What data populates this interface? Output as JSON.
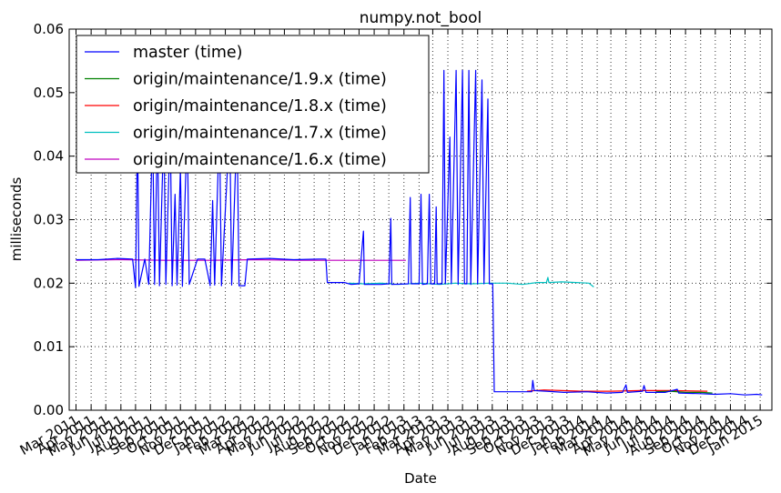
{
  "chart_data": {
    "type": "line",
    "title": "numpy.not_bool",
    "xlabel": "Date",
    "ylabel": "milliseconds",
    "ylim": [
      0,
      0.06
    ],
    "xlim": [
      "2011-02-15",
      "2015-01-25"
    ],
    "grid": true,
    "legend_position": "top-left",
    "yticks": [
      "0.00",
      "0.01",
      "0.02",
      "0.03",
      "0.04",
      "0.05",
      "0.06"
    ],
    "xticks": [
      "Mar 2011",
      "Apr 2011",
      "May 2011",
      "Jun 2011",
      "Jul 2011",
      "Aug 2011",
      "Sep 2011",
      "Oct 2011",
      "Nov 2011",
      "Dec 2011",
      "Jan 2012",
      "Feb 2012",
      "Mar 2012",
      "Apr 2012",
      "May 2012",
      "Jun 2012",
      "Jul 2012",
      "Aug 2012",
      "Sep 2012",
      "Oct 2012",
      "Nov 2012",
      "Dec 2012",
      "Jan 2013",
      "Feb 2013",
      "Mar 2013",
      "Apr 2013",
      "May 2013",
      "Jun 2013",
      "Jul 2013",
      "Aug 2013",
      "Sep 2013",
      "Oct 2013",
      "Nov 2013",
      "Dec 2013",
      "Jan 2014",
      "Feb 2014",
      "Mar 2014",
      "Apr 2014",
      "May 2014",
      "Jun 2014",
      "Jul 2014",
      "Aug 2014",
      "Sep 2014",
      "Oct 2014",
      "Nov 2014",
      "Dec 2014",
      "Jan 2015"
    ],
    "series": [
      {
        "name": "master (time)",
        "color": "#0000ff",
        "points": [
          [
            "2011-03-01",
            0.0237
          ],
          [
            "2011-04-15",
            0.0237
          ],
          [
            "2011-05-25",
            0.0239
          ],
          [
            "2011-06-25",
            0.0238
          ],
          [
            "2011-07-01",
            0.0193
          ],
          [
            "2011-07-05",
            0.045
          ],
          [
            "2011-07-08",
            0.0195
          ],
          [
            "2011-07-20",
            0.0238
          ],
          [
            "2011-07-28",
            0.0198
          ],
          [
            "2011-08-05",
            0.045
          ],
          [
            "2011-08-09",
            0.0198
          ],
          [
            "2011-08-15",
            0.045
          ],
          [
            "2011-08-19",
            0.0196
          ],
          [
            "2011-08-28",
            0.045
          ],
          [
            "2011-09-01",
            0.0198
          ],
          [
            "2011-09-10",
            0.045
          ],
          [
            "2011-09-14",
            0.0196
          ],
          [
            "2011-09-20",
            0.034
          ],
          [
            "2011-09-24",
            0.0197
          ],
          [
            "2011-10-01",
            0.038
          ],
          [
            "2011-10-05",
            0.0195
          ],
          [
            "2011-10-15",
            0.045
          ],
          [
            "2011-10-19",
            0.0198
          ],
          [
            "2011-11-05",
            0.0238
          ],
          [
            "2011-11-20",
            0.0238
          ],
          [
            "2011-12-01",
            0.0196
          ],
          [
            "2011-12-06",
            0.033
          ],
          [
            "2011-12-10",
            0.0197
          ],
          [
            "2011-12-20",
            0.045
          ],
          [
            "2011-12-24",
            0.0196
          ],
          [
            "2012-01-10",
            0.045
          ],
          [
            "2012-01-14",
            0.0197
          ],
          [
            "2012-01-25",
            0.045
          ],
          [
            "2012-01-29",
            0.0196
          ],
          [
            "2012-02-10",
            0.0196
          ],
          [
            "2012-02-15",
            0.0238
          ],
          [
            "2012-04-01",
            0.0239
          ],
          [
            "2012-05-20",
            0.0237
          ],
          [
            "2012-07-10",
            0.0238
          ],
          [
            "2012-07-25",
            0.0238
          ],
          [
            "2012-07-28",
            0.0201
          ],
          [
            "2012-09-01",
            0.0201
          ],
          [
            "2012-09-15",
            0.0198
          ],
          [
            "2012-10-01",
            0.0199
          ],
          [
            "2012-10-10",
            0.0282
          ],
          [
            "2012-10-12",
            0.0198
          ],
          [
            "2012-11-15",
            0.0198
          ],
          [
            "2012-12-01",
            0.0199
          ],
          [
            "2012-12-05",
            0.0302
          ],
          [
            "2012-12-07",
            0.0198
          ],
          [
            "2013-01-10",
            0.0199
          ],
          [
            "2013-01-14",
            0.0335
          ],
          [
            "2013-01-16",
            0.0199
          ],
          [
            "2013-02-01",
            0.0199
          ],
          [
            "2013-02-05",
            0.034
          ],
          [
            "2013-02-08",
            0.0198
          ],
          [
            "2013-02-18",
            0.0199
          ],
          [
            "2013-02-22",
            0.034
          ],
          [
            "2013-02-25",
            0.0199
          ],
          [
            "2013-03-05",
            0.0199
          ],
          [
            "2013-03-08",
            0.032
          ],
          [
            "2013-03-10",
            0.0199
          ],
          [
            "2013-03-20",
            0.0199
          ],
          [
            "2013-03-24",
            0.0535
          ],
          [
            "2013-03-27",
            0.0199
          ],
          [
            "2013-04-05",
            0.043
          ],
          [
            "2013-04-08",
            0.0199
          ],
          [
            "2013-04-18",
            0.0535
          ],
          [
            "2013-04-22",
            0.0198
          ],
          [
            "2013-05-01",
            0.0535
          ],
          [
            "2013-05-05",
            0.0199
          ],
          [
            "2013-05-10",
            0.0199
          ],
          [
            "2013-05-14",
            0.0535
          ],
          [
            "2013-05-18",
            0.0198
          ],
          [
            "2013-05-28",
            0.0535
          ],
          [
            "2013-06-01",
            0.0199
          ],
          [
            "2013-06-10",
            0.052
          ],
          [
            "2013-06-14",
            0.0199
          ],
          [
            "2013-06-22",
            0.049
          ],
          [
            "2013-06-25",
            0.0199
          ],
          [
            "2013-07-02",
            0.0199
          ],
          [
            "2013-07-05",
            0.0029
          ],
          [
            "2013-08-15",
            0.0029
          ],
          [
            "2013-09-20",
            0.0029
          ],
          [
            "2013-09-22",
            0.0047
          ],
          [
            "2013-09-25",
            0.0031
          ],
          [
            "2013-10-20",
            0.003
          ],
          [
            "2013-11-25",
            0.0028
          ],
          [
            "2014-01-10",
            0.0029
          ],
          [
            "2014-02-20",
            0.0027
          ],
          [
            "2014-03-25",
            0.0028
          ],
          [
            "2014-04-01",
            0.004
          ],
          [
            "2014-04-04",
            0.0028
          ],
          [
            "2014-05-05",
            0.003
          ],
          [
            "2014-05-08",
            0.0039
          ],
          [
            "2014-05-12",
            0.0028
          ],
          [
            "2014-06-20",
            0.0028
          ],
          [
            "2014-07-15",
            0.0033
          ],
          [
            "2014-07-18",
            0.0027
          ],
          [
            "2014-09-01",
            0.0026
          ],
          [
            "2014-10-01",
            0.0025
          ],
          [
            "2014-11-01",
            0.0026
          ],
          [
            "2014-12-01",
            0.0024
          ],
          [
            "2014-12-25",
            0.0025
          ],
          [
            "2015-01-05",
            0.0024
          ]
        ]
      },
      {
        "name": "origin/maintenance/1.9.x (time)",
        "color": "#008000",
        "points": [
          [
            "2014-06-01",
            0.0029
          ],
          [
            "2014-07-01",
            0.003
          ],
          [
            "2014-08-01",
            0.0028
          ],
          [
            "2014-09-01",
            0.0028
          ],
          [
            "2014-09-25",
            0.0027
          ]
        ]
      },
      {
        "name": "origin/maintenance/1.8.x (time)",
        "color": "#ff0000",
        "points": [
          [
            "2013-09-10",
            0.003
          ],
          [
            "2013-10-15",
            0.0032
          ],
          [
            "2013-11-20",
            0.0031
          ],
          [
            "2014-01-01",
            0.003
          ],
          [
            "2014-03-01",
            0.003
          ],
          [
            "2014-05-01",
            0.0031
          ],
          [
            "2014-07-01",
            0.0031
          ],
          [
            "2014-09-15",
            0.003
          ]
        ]
      },
      {
        "name": "origin/maintenance/1.7.x (time)",
        "color": "#00bfbf",
        "points": [
          [
            "2012-09-10",
            0.02
          ],
          [
            "2012-10-10",
            0.0199
          ],
          [
            "2012-11-15",
            0.02
          ],
          [
            "2012-12-20",
            0.0198
          ],
          [
            "2013-02-01",
            0.02
          ],
          [
            "2013-03-15",
            0.0198
          ],
          [
            "2013-04-15",
            0.02
          ],
          [
            "2013-05-20",
            0.0199
          ],
          [
            "2013-06-25",
            0.02
          ],
          [
            "2013-08-01",
            0.02
          ],
          [
            "2013-09-01",
            0.0198
          ],
          [
            "2013-10-01",
            0.0201
          ],
          [
            "2013-10-20",
            0.0201
          ],
          [
            "2013-10-23",
            0.0209
          ],
          [
            "2013-10-25",
            0.0201
          ],
          [
            "2013-11-20",
            0.0202
          ],
          [
            "2013-12-20",
            0.0201
          ],
          [
            "2014-01-15",
            0.02
          ],
          [
            "2014-01-25",
            0.0194
          ]
        ]
      },
      {
        "name": "origin/maintenance/1.6.x (time)",
        "color": "#bf00bf",
        "points": [
          [
            "2011-03-01",
            0.0236
          ],
          [
            "2011-06-01",
            0.0237
          ],
          [
            "2011-09-01",
            0.0236
          ],
          [
            "2011-12-01",
            0.0236
          ],
          [
            "2012-03-01",
            0.0237
          ],
          [
            "2012-06-01",
            0.0236
          ],
          [
            "2012-09-01",
            0.0236
          ],
          [
            "2012-11-01",
            0.0236
          ],
          [
            "2013-01-05",
            0.0236
          ]
        ]
      }
    ]
  }
}
